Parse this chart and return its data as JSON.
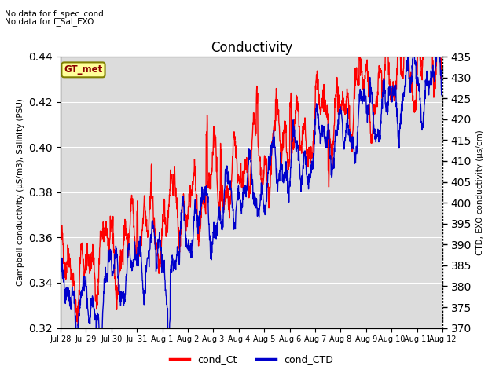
{
  "title": "Conductivity",
  "ylabel_left": "Campbell conductivity (µS/m3), Salinity (PSU)",
  "ylabel_right": "CTD, EXO conductivity (µs/cm)",
  "annotation1": "No data for f_spec_cond",
  "annotation2": "No data for f_Sal_EXO",
  "text_box": "GT_met",
  "ylim_left": [
    0.32,
    0.44
  ],
  "ylim_right": [
    370,
    435
  ],
  "yticks_left": [
    0.32,
    0.34,
    0.36,
    0.38,
    0.4,
    0.42,
    0.44
  ],
  "yticks_right": [
    370,
    375,
    380,
    385,
    390,
    395,
    400,
    405,
    410,
    415,
    420,
    425,
    430,
    435
  ],
  "xtick_labels": [
    "Jul 28",
    "Jul 29",
    "Jul 30",
    "Jul 31",
    "Aug 1",
    "Aug 2",
    "Aug 3",
    "Aug 4",
    "Aug 5",
    "Aug 6",
    "Aug 7",
    "Aug 8",
    "Aug 9",
    "Aug 10",
    "Aug 11",
    "Aug 12"
  ],
  "color_red": "#FF0000",
  "color_blue": "#0000CC",
  "legend_label_red": "cond_Ct",
  "legend_label_blue": "cond_CTD",
  "bg_color": "#DCDCDC",
  "fig_bg_color": "#FFFFFF",
  "linewidth": 1.0
}
